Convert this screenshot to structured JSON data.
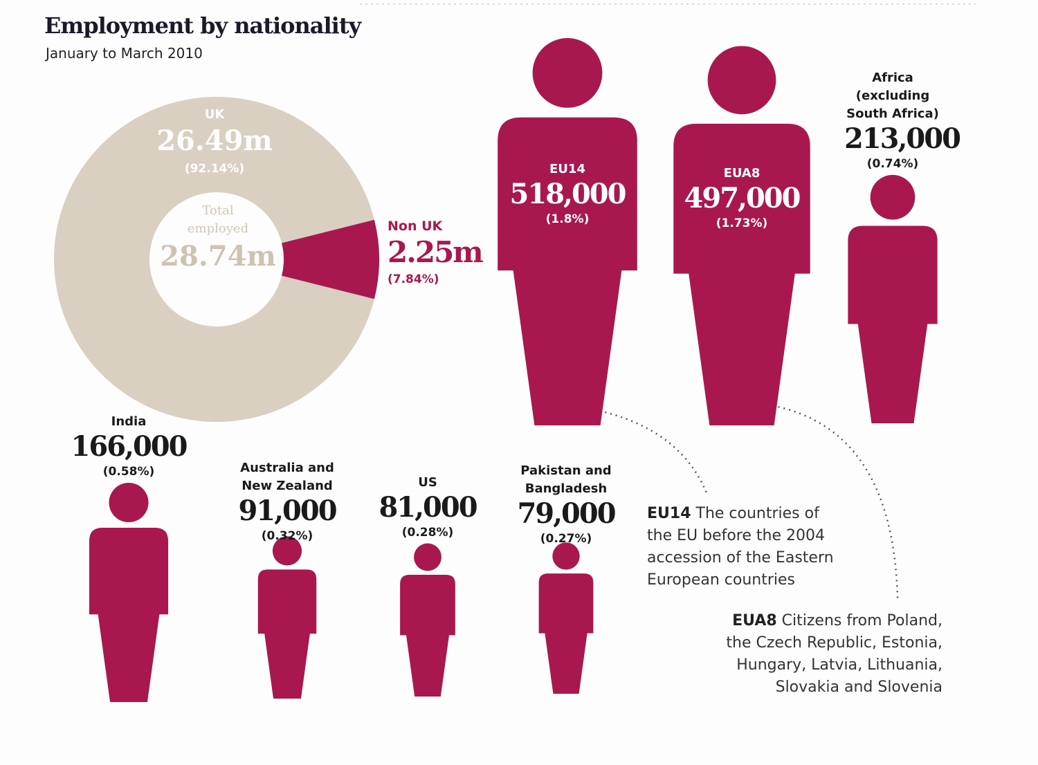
{
  "chart_data": [
    {
      "type": "pie",
      "title": "Employment by nationality",
      "subtitle": "January to March 2010",
      "center_label": "Total employed",
      "center_value": "28.74m",
      "categories": [
        "UK",
        "Non UK"
      ],
      "amounts": [
        "26.49m",
        "2.25m"
      ],
      "values": [
        92.14,
        7.84
      ],
      "value_labels": [
        "(92.14%)",
        "(7.84%)"
      ],
      "colors": [
        "#d9d0c1",
        "#a8184f"
      ]
    },
    {
      "type": "pictogram",
      "color": "#a8184f",
      "categories": [
        "EU14",
        "EUA8",
        "Africa (excluding South Africa)",
        "India",
        "Australia and New Zealand",
        "US",
        "Pakistan and Bangladesh"
      ],
      "values": [
        518000,
        497000,
        213000,
        166000,
        91000,
        81000,
        79000
      ],
      "value_labels": [
        "518,000",
        "497,000",
        "213,000",
        "166,000",
        "91,000",
        "81,000",
        "79,000"
      ],
      "shares": [
        1.8,
        1.73,
        0.74,
        0.58,
        0.32,
        0.28,
        0.27
      ],
      "share_labels": [
        "(1.8%)",
        "(1.73%)",
        "(0.74%)",
        "(0.58%)",
        "(0.32%)",
        "(0.28%)",
        "(0.27%)"
      ]
    }
  ],
  "notes": [
    {
      "term": "EU14",
      "text": "The countries of the EU before the 2004 accession of the Eastern European countries"
    },
    {
      "term": "EUA8",
      "text": "Citizens from Poland, the Czech Republic, Estonia, Hungary, Latvia, Lithuania, Slovakia and Slovenia"
    }
  ]
}
